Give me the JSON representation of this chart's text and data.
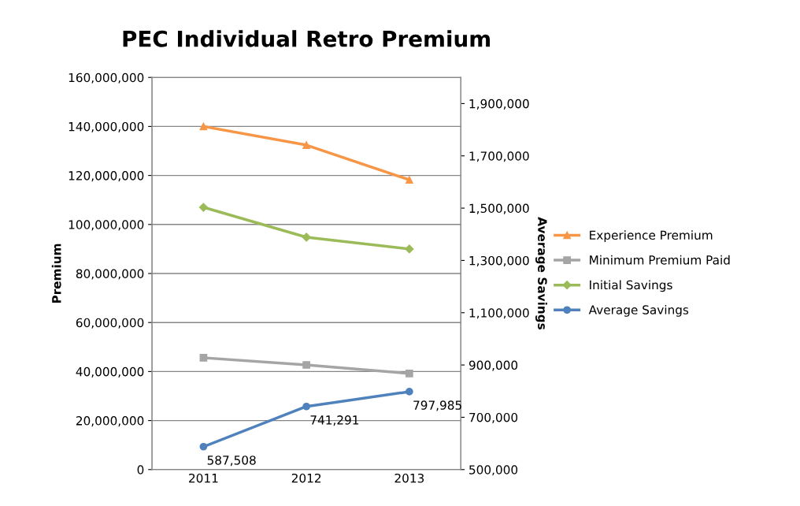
{
  "chart_data": {
    "type": "line",
    "title": "PEC Individual Retro Premium",
    "ylabel": "Premium",
    "y2label": "Average Savings",
    "categories": [
      "2011",
      "2012",
      "2013"
    ],
    "series": [
      {
        "name": "Experience Premium",
        "color": "#f79646",
        "marker": "triangle",
        "values": [
          140000000,
          132400000,
          118200000
        ]
      },
      {
        "name": "Minimum Premium Paid",
        "color": "#a5a5a5",
        "marker": "square",
        "values": [
          45600000,
          42700000,
          39200000
        ]
      },
      {
        "name": "Initial Savings",
        "color": "#9bbb59",
        "marker": "diamond",
        "values": [
          107000000,
          94800000,
          90000000
        ]
      },
      {
        "name": "Average Savings",
        "color": "#4f81bd",
        "marker": "circle",
        "axis": "y2",
        "values": [
          587508,
          741291,
          797985
        ],
        "value_labels": [
          "587,508",
          "741,291",
          "797,985"
        ]
      }
    ],
    "ylim": [
      0,
      160000000
    ],
    "yticks": [
      {
        "value": 0,
        "label": "0"
      },
      {
        "value": 20000000,
        "label": "20,000,000"
      },
      {
        "value": 40000000,
        "label": "40,000,000"
      },
      {
        "value": 60000000,
        "label": "60,000,000"
      },
      {
        "value": 80000000,
        "label": "80,000,000"
      },
      {
        "value": 100000000,
        "label": "100,000,000"
      },
      {
        "value": 120000000,
        "label": "120,000,000"
      },
      {
        "value": 140000000,
        "label": "140,000,000"
      },
      {
        "value": 160000000,
        "label": "160,000,000"
      }
    ],
    "y2lim": [
      500000,
      2000000
    ],
    "y2ticks": [
      {
        "value": 500000,
        "label": "500,000"
      },
      {
        "value": 700000,
        "label": "700,000"
      },
      {
        "value": 900000,
        "label": "900,000"
      },
      {
        "value": 1100000,
        "label": "1,100,000"
      },
      {
        "value": 1300000,
        "label": "1,300,000"
      },
      {
        "value": 1500000,
        "label": "1,500,000"
      },
      {
        "value": 1700000,
        "label": "1,700,000"
      },
      {
        "value": 1900000,
        "label": "1,900,000"
      }
    ],
    "grid": "y",
    "legend": "right"
  }
}
